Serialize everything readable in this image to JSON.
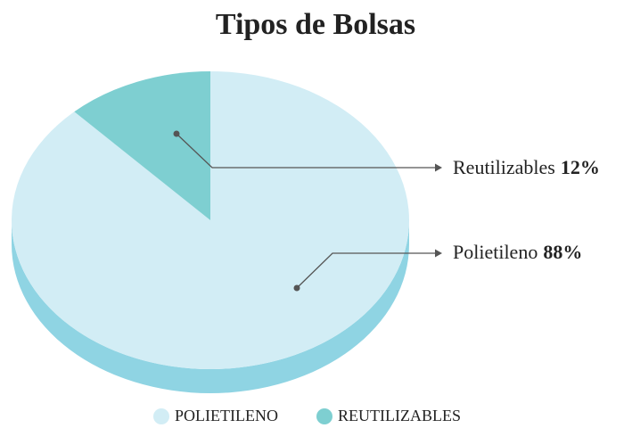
{
  "chart_data": {
    "type": "pie",
    "title": "Tipos de Bolsas",
    "categories": [
      "Polietileno",
      "Reutilizables"
    ],
    "values": [
      88,
      12
    ],
    "value_labels": [
      "88%",
      "12%"
    ],
    "colors": [
      "#d2edf5",
      "#7ecfd1"
    ],
    "legend": [
      "POLIETILENO",
      "REUTILIZABLES"
    ]
  }
}
